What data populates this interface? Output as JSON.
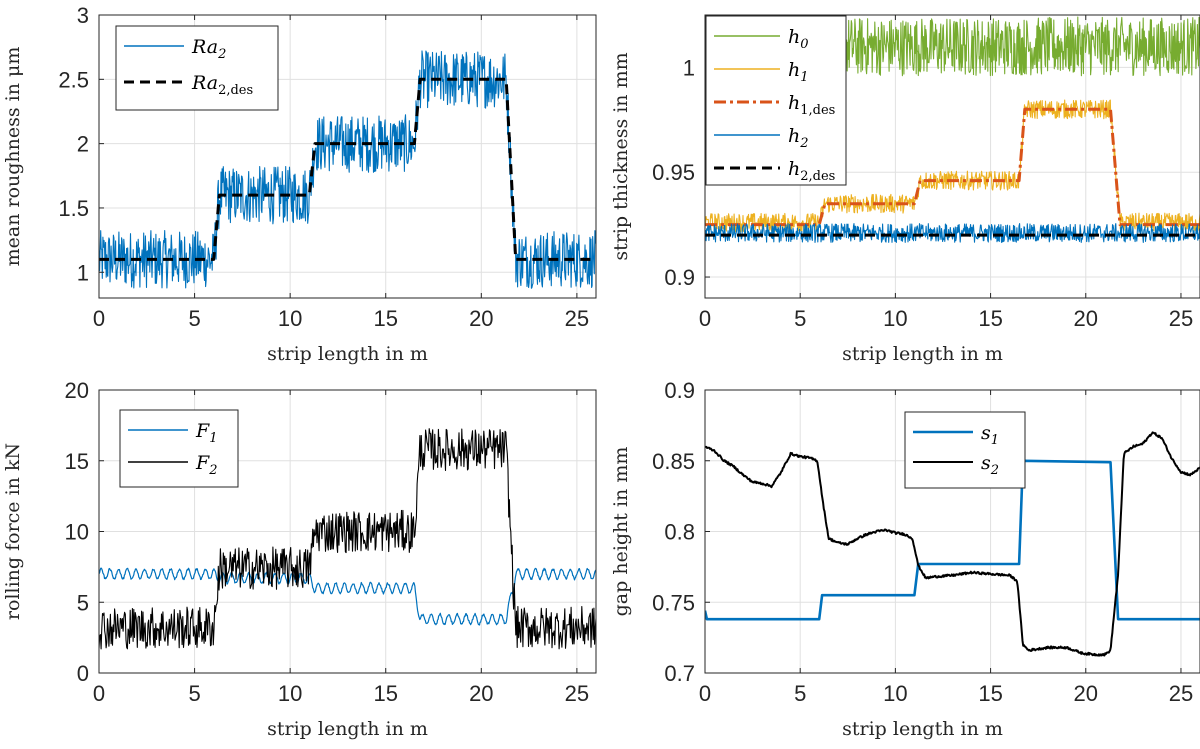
{
  "chart_data": [
    {
      "id": "roughness",
      "type": "line",
      "xlabel": "strip length in m",
      "ylabel": "mean roughness in μm",
      "xlim": [
        0,
        26
      ],
      "ylim": [
        0.8,
        3
      ],
      "xticks": [
        0,
        5,
        10,
        15,
        20,
        25
      ],
      "yticks": [
        1,
        1.5,
        2,
        2.5,
        3
      ],
      "ytick_labels": [
        "1",
        "1.5",
        "2",
        "2.5",
        "3"
      ],
      "grid": true,
      "legend": {
        "position": "top-left"
      },
      "series": [
        {
          "name": "Ra_2",
          "legend_base": "Ra",
          "legend_sub": "2",
          "color": "#0072BD",
          "dash": "solid",
          "width": 1.1,
          "kind": "noisy",
          "steps": [
            [
              0,
              1.1
            ],
            [
              6,
              1.1
            ],
            [
              6.3,
              1.6
            ],
            [
              11,
              1.6
            ],
            [
              11.3,
              2.0
            ],
            [
              16.5,
              2.0
            ],
            [
              16.8,
              2.5
            ],
            [
              21.3,
              2.5
            ],
            [
              21.8,
              1.1
            ],
            [
              26,
              1.1
            ]
          ],
          "noise": 0.45,
          "n": 900
        },
        {
          "name": "Ra_2,des",
          "legend_base": "Ra",
          "legend_sub": "2,des",
          "color": "#000000",
          "dash": "10,6",
          "width": 3,
          "kind": "steps",
          "steps": [
            [
              0,
              1.1
            ],
            [
              6,
              1.1
            ],
            [
              6.3,
              1.6
            ],
            [
              11,
              1.6
            ],
            [
              11.3,
              2.0
            ],
            [
              16.5,
              2.0
            ],
            [
              16.8,
              2.5
            ],
            [
              21.3,
              2.5
            ],
            [
              21.8,
              1.1
            ],
            [
              26,
              1.1
            ]
          ]
        }
      ]
    },
    {
      "id": "thickness",
      "type": "line",
      "xlabel": "strip length in m",
      "ylabel": "strip thickness in mm",
      "xlim": [
        0,
        26
      ],
      "ylim": [
        0.89,
        1.025
      ],
      "xticks": [
        0,
        5,
        10,
        15,
        20,
        25
      ],
      "yticks": [
        0.9,
        0.95,
        1
      ],
      "ytick_labels": [
        "0.9",
        "0.95",
        "1"
      ],
      "grid": true,
      "legend": {
        "position": "top-left"
      },
      "series": [
        {
          "name": "h_0",
          "legend_base": "h",
          "legend_sub": "0",
          "color": "#77AC30",
          "dash": "solid",
          "width": 1.1,
          "kind": "noisy",
          "steps": [
            [
              7.2,
              1.01
            ],
            [
              26,
              1.01
            ]
          ],
          "noise": 0.028,
          "n": 700
        },
        {
          "name": "h_1",
          "legend_base": "h",
          "legend_sub": "1",
          "color": "#EDB120",
          "dash": "solid",
          "width": 1.1,
          "kind": "noisy",
          "steps": [
            [
              0,
              0.926
            ],
            [
              6,
              0.926
            ],
            [
              6.3,
              0.935
            ],
            [
              11,
              0.935
            ],
            [
              11.3,
              0.946
            ],
            [
              16.5,
              0.946
            ],
            [
              16.8,
              0.98
            ],
            [
              21.3,
              0.98
            ],
            [
              21.8,
              0.926
            ],
            [
              26,
              0.926
            ]
          ],
          "noise": 0.009,
          "n": 900
        },
        {
          "name": "h_1,des",
          "legend_base": "h",
          "legend_sub": "1,des",
          "color": "#D95319",
          "dash": "12,4,3,4",
          "width": 3,
          "kind": "steps",
          "steps": [
            [
              0,
              0.925
            ],
            [
              6,
              0.925
            ],
            [
              6.3,
              0.935
            ],
            [
              11,
              0.935
            ],
            [
              11.3,
              0.946
            ],
            [
              16.5,
              0.946
            ],
            [
              16.8,
              0.98
            ],
            [
              21.3,
              0.98
            ],
            [
              21.8,
              0.925
            ],
            [
              26,
              0.925
            ]
          ]
        },
        {
          "name": "h_2",
          "legend_base": "h",
          "legend_sub": "2",
          "color": "#0072BD",
          "dash": "solid",
          "width": 1.1,
          "kind": "noisy",
          "steps": [
            [
              0,
              0.921
            ],
            [
              26,
              0.921
            ]
          ],
          "noise": 0.009,
          "n": 900
        },
        {
          "name": "h_2,des",
          "legend_base": "h",
          "legend_sub": "2,des",
          "color": "#000000",
          "dash": "10,6",
          "width": 3,
          "kind": "steps",
          "steps": [
            [
              0,
              0.92
            ],
            [
              26,
              0.92
            ]
          ]
        }
      ]
    },
    {
      "id": "force",
      "type": "line",
      "xlabel": "strip length in m",
      "ylabel": "rolling force in kN",
      "xlim": [
        0,
        26
      ],
      "ylim": [
        0,
        20
      ],
      "xticks": [
        0,
        5,
        10,
        15,
        20,
        25
      ],
      "yticks": [
        0,
        5,
        10,
        15,
        20
      ],
      "ytick_labels": [
        "0",
        "5",
        "10",
        "15",
        "20"
      ],
      "grid": true,
      "legend": {
        "position": "top-left"
      },
      "series": [
        {
          "name": "F_1",
          "legend_base": "F",
          "legend_sub": "1",
          "color": "#0072BD",
          "dash": "solid",
          "width": 1.2,
          "kind": "wave",
          "steps": [
            [
              0,
              7.0
            ],
            [
              6,
              7.0
            ],
            [
              6.3,
              6.7
            ],
            [
              11,
              6.7
            ],
            [
              11.3,
              6.0
            ],
            [
              16.5,
              6.0
            ],
            [
              16.8,
              3.8
            ],
            [
              21.3,
              3.8
            ],
            [
              21.8,
              7.0
            ],
            [
              26,
              7.0
            ]
          ],
          "amp": 0.35,
          "freq": 2.2,
          "n": 900
        },
        {
          "name": "F_2",
          "legend_base": "F",
          "legend_sub": "2",
          "color": "#000000",
          "dash": "solid",
          "width": 1.1,
          "kind": "noisy",
          "steps": [
            [
              0,
              3.2
            ],
            [
              6,
              3.2
            ],
            [
              6.3,
              7.4
            ],
            [
              11,
              7.4
            ],
            [
              11.3,
              10.0
            ],
            [
              16.5,
              10.0
            ],
            [
              16.8,
              15.8
            ],
            [
              21.3,
              15.8
            ],
            [
              21.8,
              3.2
            ],
            [
              26,
              3.2
            ]
          ],
          "noise": 3.0,
          "n": 700
        }
      ]
    },
    {
      "id": "gap",
      "type": "line",
      "xlabel": "strip length in m",
      "ylabel": "gap height in mm",
      "xlim": [
        0,
        26
      ],
      "ylim": [
        0.7,
        0.9
      ],
      "xticks": [
        0,
        5,
        10,
        15,
        20,
        25
      ],
      "yticks": [
        0.7,
        0.75,
        0.8,
        0.85,
        0.9
      ],
      "ytick_labels": [
        "0.7",
        "0.75",
        "0.8",
        "0.85",
        "0.9"
      ],
      "grid": true,
      "legend": {
        "position": "top-center"
      },
      "series": [
        {
          "name": "s_1",
          "legend_base": "s",
          "legend_sub": "1",
          "color": "#0072BD",
          "dash": "solid",
          "width": 2.6,
          "kind": "steps",
          "steps": [
            [
              0,
              0.744
            ],
            [
              0.1,
              0.738
            ],
            [
              6,
              0.738
            ],
            [
              6.15,
              0.755
            ],
            [
              11,
              0.755
            ],
            [
              11.2,
              0.777
            ],
            [
              16.5,
              0.777
            ],
            [
              16.7,
              0.85
            ],
            [
              21.3,
              0.849
            ],
            [
              21.7,
              0.738
            ],
            [
              26,
              0.738
            ]
          ]
        },
        {
          "name": "s_2",
          "legend_base": "s",
          "legend_sub": "2",
          "color": "#000000",
          "dash": "solid",
          "width": 2,
          "kind": "curve",
          "points": [
            [
              0,
              0.86
            ],
            [
              0.5,
              0.857
            ],
            [
              1,
              0.85
            ],
            [
              1.5,
              0.846
            ],
            [
              2,
              0.84
            ],
            [
              2.5,
              0.835
            ],
            [
              3,
              0.834
            ],
            [
              3.5,
              0.832
            ],
            [
              4,
              0.842
            ],
            [
              4.5,
              0.855
            ],
            [
              5,
              0.853
            ],
            [
              5.5,
              0.852
            ],
            [
              5.9,
              0.85
            ],
            [
              6.2,
              0.82
            ],
            [
              6.5,
              0.795
            ],
            [
              7,
              0.792
            ],
            [
              7.5,
              0.791
            ],
            [
              8,
              0.795
            ],
            [
              8.5,
              0.798
            ],
            [
              9,
              0.8
            ],
            [
              9.5,
              0.801
            ],
            [
              10,
              0.799
            ],
            [
              10.5,
              0.798
            ],
            [
              10.9,
              0.795
            ],
            [
              11.2,
              0.776
            ],
            [
              11.6,
              0.767
            ],
            [
              12,
              0.768
            ],
            [
              13,
              0.769
            ],
            [
              14,
              0.771
            ],
            [
              15,
              0.77
            ],
            [
              16,
              0.769
            ],
            [
              16.4,
              0.765
            ],
            [
              16.7,
              0.72
            ],
            [
              17,
              0.716
            ],
            [
              18,
              0.718
            ],
            [
              19,
              0.718
            ],
            [
              19.8,
              0.714
            ],
            [
              20.5,
              0.713
            ],
            [
              21,
              0.713
            ],
            [
              21.3,
              0.716
            ],
            [
              21.7,
              0.77
            ],
            [
              22,
              0.855
            ],
            [
              22.5,
              0.86
            ],
            [
              23,
              0.862
            ],
            [
              23.5,
              0.87
            ],
            [
              24,
              0.866
            ],
            [
              24.5,
              0.852
            ],
            [
              25,
              0.842
            ],
            [
              25.5,
              0.84
            ],
            [
              26,
              0.845
            ]
          ],
          "noise": 0.0015
        }
      ]
    }
  ]
}
